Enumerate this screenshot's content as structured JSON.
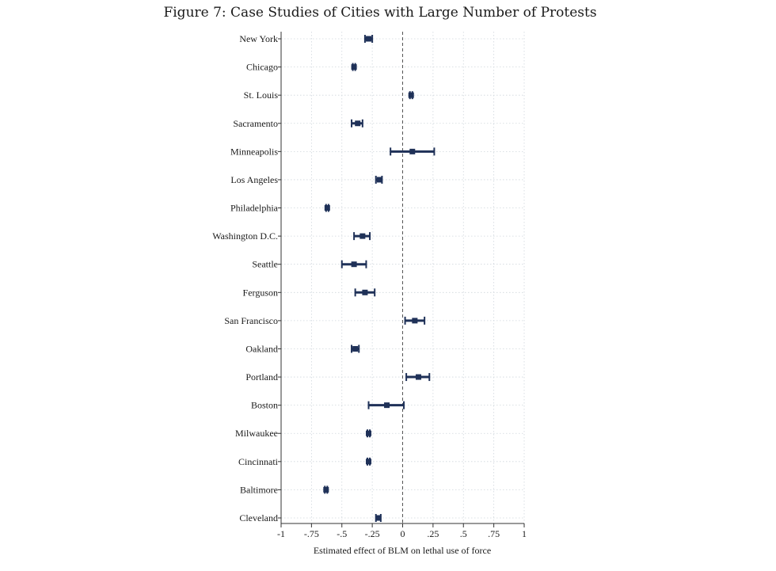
{
  "chart_data": {
    "type": "scatter",
    "title": "Figure 7: Case Studies of Cities with Large Number of Protests",
    "xlabel": "Estimated effect of BLM on lethal use of force",
    "ylabel": "",
    "xlim": [
      -1,
      1
    ],
    "xticks": [
      -1,
      -0.75,
      -0.5,
      -0.25,
      0,
      0.25,
      0.5,
      0.75,
      1
    ],
    "xtick_labels": [
      "-1",
      "-.75",
      "-.5",
      "-.25",
      "0",
      ".25",
      ".5",
      ".75",
      "1"
    ],
    "reference_line_x": 0,
    "grid": true,
    "colors": {
      "marker": "#1f3158",
      "reference": "#555555"
    },
    "categories": [
      "New York",
      "Chicago",
      "St. Louis",
      "Sacramento",
      "Minneapolis",
      "Los Angeles",
      "Philadelphia",
      "Washington D.C.",
      "Seattle",
      "Ferguson",
      "San Francisco",
      "Oakland",
      "Portland",
      "Boston",
      "Milwaukee",
      "Cincinnati",
      "Baltimore",
      "Cleveland"
    ],
    "estimates": [
      -0.28,
      -0.4,
      0.07,
      -0.37,
      0.08,
      -0.19,
      -0.62,
      -0.33,
      -0.4,
      -0.31,
      0.1,
      -0.39,
      0.13,
      -0.13,
      -0.28,
      -0.28,
      -0.63,
      -0.2
    ],
    "ci_lower": [
      -0.31,
      -0.41,
      0.06,
      -0.42,
      -0.1,
      -0.22,
      -0.63,
      -0.4,
      -0.5,
      -0.39,
      0.02,
      -0.42,
      0.03,
      -0.28,
      -0.29,
      -0.29,
      -0.64,
      -0.22
    ],
    "ci_upper": [
      -0.25,
      -0.39,
      0.08,
      -0.33,
      0.26,
      -0.17,
      -0.61,
      -0.27,
      -0.3,
      -0.23,
      0.18,
      -0.36,
      0.22,
      0.01,
      -0.27,
      -0.27,
      -0.62,
      -0.18
    ]
  }
}
